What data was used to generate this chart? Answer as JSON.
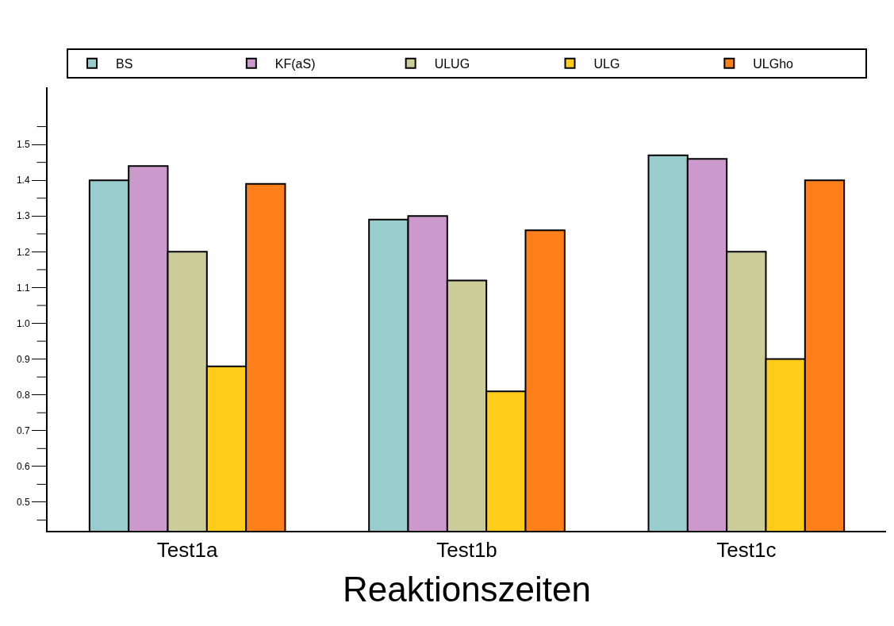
{
  "chart_data": {
    "type": "bar",
    "xlabel": "Reaktionszeiten",
    "categories": [
      "Test1a",
      "Test1b",
      "Test1c"
    ],
    "series": [
      {
        "name": "BS",
        "color": "#99cccc",
        "values": [
          1.4,
          1.29,
          1.47
        ]
      },
      {
        "name": "KF(aS)",
        "color": "#cc99cc",
        "values": [
          1.44,
          1.3,
          1.46
        ]
      },
      {
        "name": "ULUG",
        "color": "#cccc99",
        "values": [
          1.2,
          1.12,
          1.2
        ]
      },
      {
        "name": "ULG",
        "color": "#ffcc1a",
        "values": [
          0.88,
          0.81,
          0.9
        ]
      },
      {
        "name": "ULGho",
        "color": "#ff801a",
        "values": [
          1.39,
          1.26,
          1.4
        ]
      }
    ],
    "ylim": [
      0.42,
      1.66
    ],
    "yticks": [
      {
        "value": 0.45,
        "label": null
      },
      0.5,
      {
        "value": 0.55,
        "label": null
      },
      0.6,
      {
        "value": 0.65,
        "label": null
      },
      0.7,
      {
        "value": 0.75,
        "label": null
      },
      0.8,
      {
        "value": 0.85,
        "label": null
      },
      0.9,
      {
        "value": 0.95,
        "label": null
      },
      {
        "value": 1.0,
        "label": "1.0"
      },
      {
        "value": 1.05,
        "label": null
      },
      1.1,
      {
        "value": 1.15,
        "label": null
      },
      1.2,
      {
        "value": 1.25,
        "label": null
      },
      1.3,
      {
        "value": 1.35,
        "label": null
      },
      1.4,
      {
        "value": 1.45,
        "label": null
      },
      1.5,
      {
        "value": 1.55,
        "label": null
      }
    ],
    "grid": false,
    "legend": "top"
  }
}
